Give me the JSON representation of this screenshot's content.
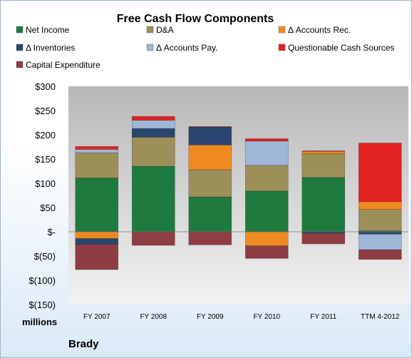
{
  "chart_data": {
    "type": "bar",
    "stacked": true,
    "title": "Free Cash Flow Components",
    "unit_label": "millions",
    "company": "Brady",
    "categories": [
      "FY 2007",
      "FY 2008",
      "FY 2009",
      "FY 2010",
      "FY 2011",
      "TTM 4-2012"
    ],
    "ylim": [
      -150,
      300
    ],
    "yticks": [
      -150,
      -100,
      -50,
      0,
      50,
      100,
      150,
      200,
      250,
      300
    ],
    "ytick_labels": [
      "$(150)",
      "$(100)",
      "$(50)",
      "$-",
      "$50",
      "$100",
      "$150",
      "$200",
      "$250",
      "$300"
    ],
    "grid": false,
    "legend_position": "top",
    "series": [
      {
        "name": "Net Income",
        "color": "#1f7a3f",
        "values": [
          111,
          135,
          72,
          84,
          112,
          2
        ]
      },
      {
        "name": "D&A",
        "color": "#9c8f5a",
        "values": [
          52,
          60,
          56,
          53,
          49,
          44
        ]
      },
      {
        "name": "Δ Accounts Rec.",
        "color": "#ef8a23",
        "values": [
          -14,
          0,
          51,
          -29,
          5,
          16
        ]
      },
      {
        "name": "Δ Inventories",
        "color": "#2a4670",
        "values": [
          -12,
          18,
          37,
          0,
          -3,
          -5
        ]
      },
      {
        "name": "Δ Accounts Pay.",
        "color": "#9fb6d8",
        "values": [
          7,
          17,
          0,
          50,
          0,
          -32
        ]
      },
      {
        "name": "Questionable Cash Sources",
        "color": "#e32222",
        "values": [
          6,
          8,
          1,
          5,
          1,
          121
        ]
      },
      {
        "name": "Capital Expenditure",
        "color": "#8e3d44",
        "values": [
          -52,
          -28,
          -27,
          -26,
          -22,
          -20
        ]
      }
    ]
  }
}
